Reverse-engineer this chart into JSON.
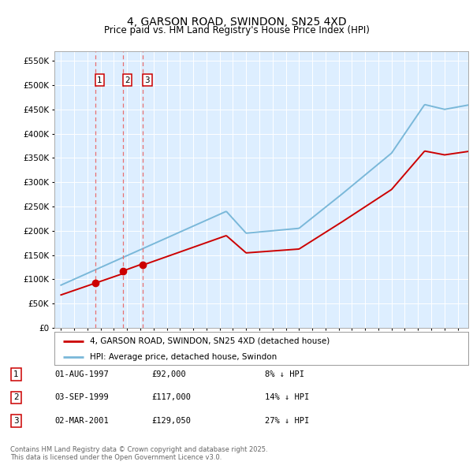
{
  "title": "4, GARSON ROAD, SWINDON, SN25 4XD",
  "subtitle": "Price paid vs. HM Land Registry's House Price Index (HPI)",
  "legend_line1": "4, GARSON ROAD, SWINDON, SN25 4XD (detached house)",
  "legend_line2": "HPI: Average price, detached house, Swindon",
  "footnote": "Contains HM Land Registry data © Crown copyright and database right 2025.\nThis data is licensed under the Open Government Licence v3.0.",
  "transactions": [
    {
      "num": 1,
      "date": "01-AUG-1997",
      "price": 92000,
      "pct": "8% ↓ HPI",
      "year": 1997.583
    },
    {
      "num": 2,
      "date": "03-SEP-1999",
      "price": 117000,
      "pct": "14% ↓ HPI",
      "year": 1999.667
    },
    {
      "num": 3,
      "date": "02-MAR-2001",
      "price": 129050,
      "pct": "27% ↓ HPI",
      "year": 2001.167
    }
  ],
  "red_line_color": "#cc0000",
  "blue_line_color": "#7ab8d9",
  "dashed_line_color": "#e87070",
  "fig_bg": "#ffffff",
  "plot_bg": "#ddeeff",
  "grid_color": "#ffffff",
  "ylim": [
    0,
    570000
  ],
  "yticks": [
    0,
    50000,
    100000,
    150000,
    200000,
    250000,
    300000,
    350000,
    400000,
    450000,
    500000,
    550000
  ],
  "xlim_start": 1994.5,
  "xlim_end": 2025.8
}
